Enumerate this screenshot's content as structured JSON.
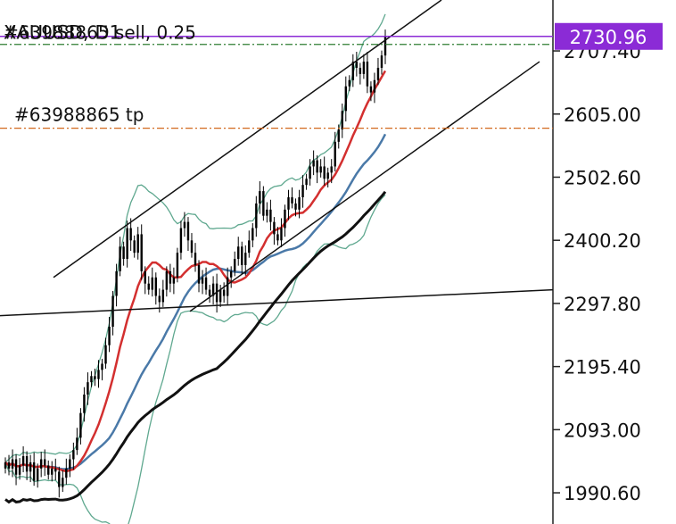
{
  "chart_data": {
    "type": "candlestick",
    "title": "XAUUSD, D1",
    "ylim": [
      1940,
      2790
    ],
    "y_ticks": [
      "2707.40",
      "2605.00",
      "2502.60",
      "2400.20",
      "2297.80",
      "2195.40",
      "2093.00",
      "1990.60"
    ],
    "y_tick_values": [
      2707.4,
      2605.0,
      2502.6,
      2400.2,
      2297.8,
      2195.4,
      2093.0,
      1990.6
    ],
    "current_price": "2730.96",
    "current_price_value": 2730.96,
    "orders": [
      {
        "label": "#63988865 sell, 0.25",
        "price": 2718.0,
        "color": "#2e7d32",
        "style": "dash-dot"
      },
      {
        "label": "#63988865 tp",
        "price": 2582.0,
        "color": "#d2691e",
        "style": "dash-dot"
      }
    ],
    "closes": [
      2040,
      2030,
      2045,
      2020,
      2035,
      2050,
      2025,
      2040,
      2010,
      2030,
      2045,
      2035,
      2020,
      2030,
      2025,
      2000,
      2015,
      2030,
      2045,
      2060,
      2080,
      2120,
      2150,
      2170,
      2180,
      2175,
      2190,
      2200,
      2230,
      2260,
      2310,
      2350,
      2390,
      2370,
      2420,
      2400,
      2380,
      2410,
      2350,
      2330,
      2320,
      2340,
      2310,
      2300,
      2320,
      2350,
      2330,
      2340,
      2380,
      2420,
      2430,
      2400,
      2380,
      2360,
      2330,
      2340,
      2320,
      2310,
      2330,
      2300,
      2320,
      2310,
      2340,
      2350,
      2370,
      2390,
      2360,
      2380,
      2400,
      2420,
      2460,
      2480,
      2440,
      2450,
      2430,
      2410,
      2400,
      2420,
      2450,
      2470,
      2460,
      2450,
      2470,
      2490,
      2500,
      2520,
      2530,
      2510,
      2520,
      2500,
      2510,
      2520,
      2560,
      2580,
      2610,
      2650,
      2660,
      2690,
      2680,
      2670,
      2690,
      2650,
      2640,
      2660,
      2680,
      2700,
      2730
    ],
    "sma_fast_label": "red",
    "colors": {
      "sma_fast": "#d32f2f",
      "sma_mid": "#4a79a8",
      "sma_slow": "#111111",
      "band": "#5fa88f",
      "price_tag": "#8b2bd6",
      "candle": "#000000"
    }
  }
}
